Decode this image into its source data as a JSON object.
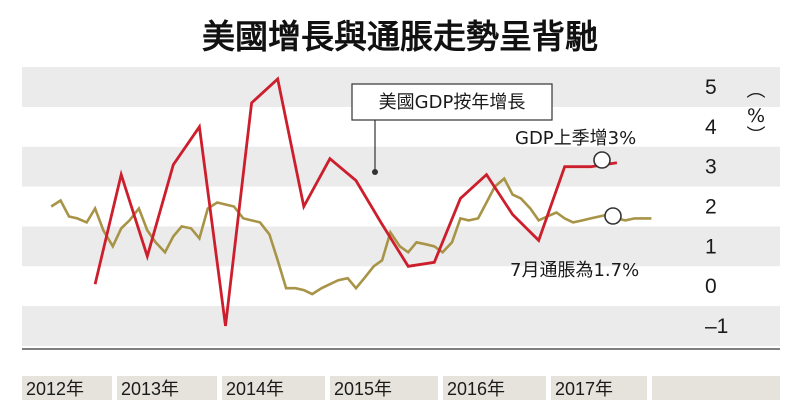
{
  "chart_data": {
    "type": "line",
    "title": "美國增長與通脹走勢呈背馳",
    "unit_label": "（%）",
    "ylim": [
      -1.5,
      5.5
    ],
    "yticks": [
      5,
      4,
      3,
      2,
      1,
      0,
      -1
    ],
    "ytick_labels": [
      "5",
      "4",
      "3",
      "2",
      "1",
      "0",
      "–1"
    ],
    "x_categories": [
      "2012年",
      "2013年",
      "2014年",
      "2015年",
      "2016年",
      "2017年"
    ],
    "colors": {
      "gdp": "#cc1e2c",
      "cpi": "#a89447",
      "band": "#ebebeb",
      "yearbar": "#e6e3dc"
    },
    "series": [
      {
        "name": "美國GDP按年增長",
        "x": [
          2012.25,
          2012.5,
          2012.75,
          2013.0,
          2013.25,
          2013.5,
          2013.75,
          2014.0,
          2014.25,
          2014.5,
          2014.75,
          2015.0,
          2015.25,
          2015.5,
          2015.75,
          2016.0,
          2016.25,
          2016.5,
          2016.75,
          2017.0,
          2017.25
        ],
        "values": [
          0.05,
          2.8,
          0.75,
          3.05,
          4.0,
          -1.0,
          4.6,
          5.2,
          2.0,
          3.2,
          2.65,
          1.55,
          0.5,
          0.6,
          2.2,
          2.8,
          1.8,
          1.15,
          3.0,
          3.0,
          3.1
        ]
      },
      {
        "name": "通脹",
        "x": [
          2011.83,
          2011.92,
          2012.0,
          2012.08,
          2012.17,
          2012.25,
          2012.33,
          2012.42,
          2012.5,
          2012.58,
          2012.67,
          2012.75,
          2012.83,
          2012.92,
          2013.0,
          2013.08,
          2013.17,
          2013.25,
          2013.33,
          2013.42,
          2013.5,
          2013.58,
          2013.67,
          2013.75,
          2013.83,
          2013.92,
          2014.0,
          2014.08,
          2014.17,
          2014.25,
          2014.33,
          2014.42,
          2014.5,
          2014.58,
          2014.67,
          2014.75,
          2014.83,
          2014.92,
          2015.0,
          2015.08,
          2015.17,
          2015.25,
          2015.33,
          2015.42,
          2015.5,
          2015.58,
          2015.67,
          2015.75,
          2015.83,
          2015.92,
          2016.0,
          2016.08,
          2016.17,
          2016.25,
          2016.33,
          2016.42,
          2016.5,
          2016.58,
          2016.67,
          2016.75,
          2016.83,
          2016.92,
          2017.0,
          2017.08,
          2017.17,
          2017.25,
          2017.33,
          2017.42,
          2017.5,
          2017.58
        ],
        "values": [
          2.0,
          2.15,
          1.75,
          1.7,
          1.6,
          1.95,
          1.4,
          1.0,
          1.45,
          1.65,
          1.95,
          1.4,
          1.1,
          0.85,
          1.25,
          1.5,
          1.45,
          1.2,
          1.95,
          2.1,
          2.05,
          2.0,
          1.7,
          1.65,
          1.6,
          1.3,
          0.65,
          -0.05,
          -0.05,
          -0.1,
          -0.2,
          -0.05,
          0.05,
          0.15,
          0.2,
          -0.05,
          0.2,
          0.5,
          0.65,
          1.35,
          1.0,
          0.85,
          1.1,
          1.05,
          1.0,
          0.85,
          1.1,
          1.7,
          1.65,
          1.7,
          2.1,
          2.5,
          2.7,
          2.3,
          2.2,
          1.95,
          1.65,
          1.75,
          1.85,
          1.7,
          1.6,
          1.65,
          1.7,
          1.75,
          1.8,
          1.7,
          1.65,
          1.7,
          1.7,
          1.7
        ]
      }
    ],
    "legend_label": "美國GDP按年增長",
    "annotations": {
      "gdp_note": "GDP上季增3%",
      "cpi_note": "7月通脹為1.7%"
    }
  }
}
